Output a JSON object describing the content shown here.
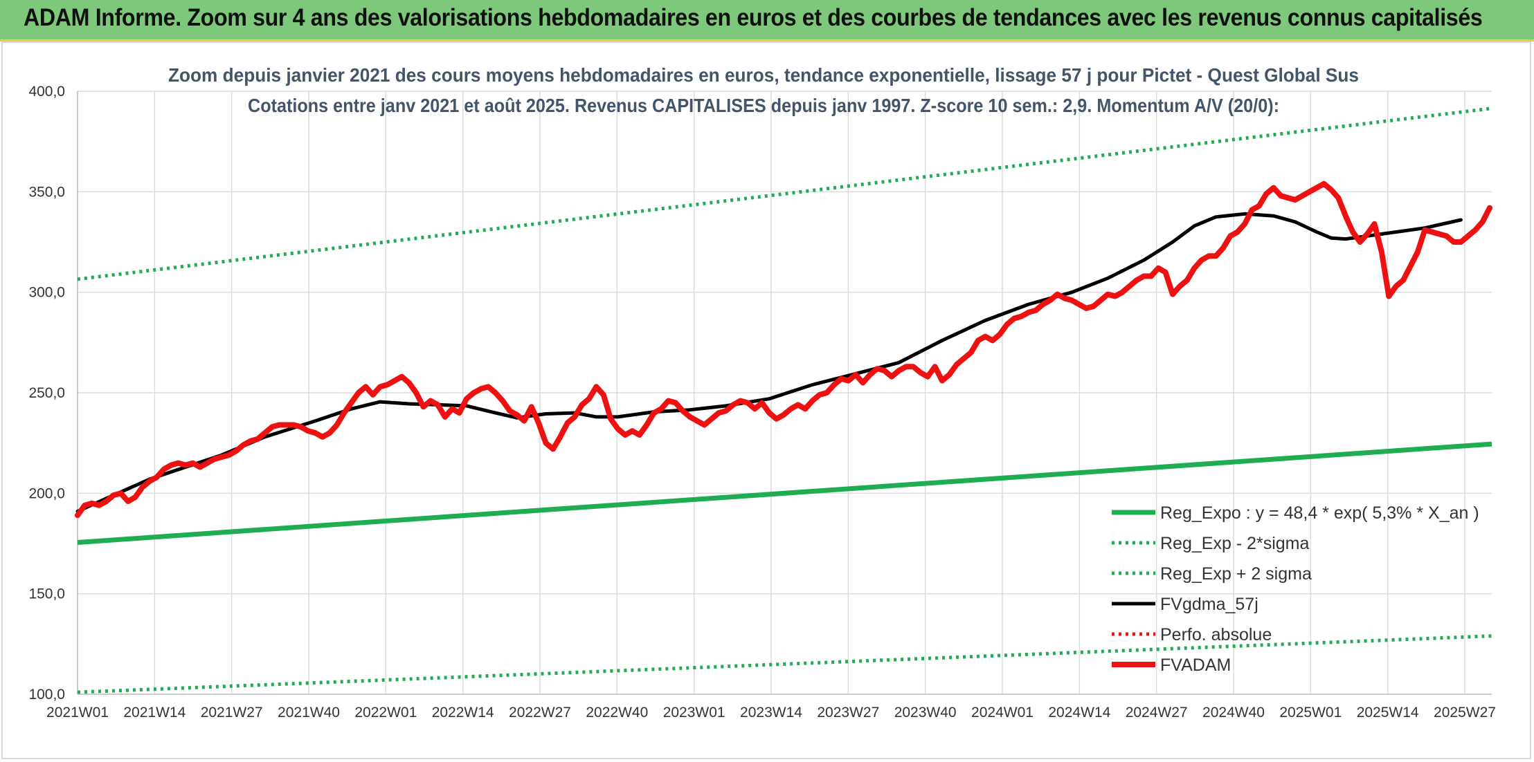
{
  "header": {
    "title": "ADAM Informe. Zoom sur 4 ans des valorisations hebdomadaires en euros et des courbes de tendances avec les revenus connus capitalisés"
  },
  "colors": {
    "header_bg": "#7dc87a",
    "header_border": "#f1d13a",
    "reg_green": "#1fad52",
    "fv_red": "#ee1111",
    "gdma_black": "#000000",
    "title_slate": "#44546a"
  },
  "chart_data": {
    "type": "line",
    "title": "Zoom depuis janvier 2021 des cours moyens hebdomadaires en euros, tendance exponentielle, lissage 57 j pour Pictet - Quest Global Sus",
    "subtitle": "Cotations entre janv 2021 et août 2025. Revenus CAPITALISES depuis janv 1997. Z-score 10 sem.: 2,9. Momentum A/V (20/0):",
    "xlabel": "",
    "ylabel": "",
    "ylim": [
      100,
      400
    ],
    "yticks": [
      "100,0",
      "150,0",
      "200,0",
      "250,0",
      "300,0",
      "350,0",
      "400,0"
    ],
    "x_ticks": [
      "2021W01",
      "2021W14",
      "2021W27",
      "2021W40",
      "2022W01",
      "2022W14",
      "2022W27",
      "2022W40",
      "2023W01",
      "2023W14",
      "2023W27",
      "2023W40",
      "2024W01",
      "2024W14",
      "2024W27",
      "2024W40",
      "2025W01",
      "2025W14",
      "2025W27"
    ],
    "grid": true,
    "legend_position": "bottom-right",
    "series": [
      {
        "name": "Reg_Expo : y = 48,4 * exp( 5,3% *  X_an )",
        "style": "solid-thick",
        "color": "#1fad52",
        "points": [
          [
            0,
            175.5
          ],
          [
            238,
            224.5
          ]
        ]
      },
      {
        "name": "Reg_Exp - 2*sigma",
        "style": "dotted",
        "color": "#1fad52",
        "points": [
          [
            0,
            101
          ],
          [
            238,
            129
          ]
        ]
      },
      {
        "name": "Reg_Exp + 2 sigma",
        "style": "dotted",
        "color": "#1fad52",
        "points": [
          [
            0,
            306.5
          ],
          [
            238,
            391.5
          ]
        ]
      },
      {
        "name": "FVgdma_57j",
        "style": "solid",
        "color": "#000000",
        "points": [
          [
            0,
            191
          ],
          [
            10,
            199
          ],
          [
            20,
            207
          ],
          [
            30,
            213
          ],
          [
            40,
            219
          ],
          [
            52,
            228
          ],
          [
            66,
            236
          ],
          [
            76,
            242
          ],
          [
            84,
            245.5
          ],
          [
            92,
            244.5
          ],
          [
            100,
            244
          ],
          [
            108,
            243.5
          ],
          [
            116,
            240
          ],
          [
            122,
            237.5
          ],
          [
            130,
            239.5
          ],
          [
            138,
            240
          ],
          [
            144,
            238
          ],
          [
            150,
            238
          ],
          [
            160,
            240.5
          ],
          [
            170,
            241.5
          ],
          [
            180,
            243.5
          ],
          [
            192,
            247
          ],
          [
            204,
            254
          ],
          [
            215,
            259
          ],
          [
            228,
            265
          ],
          [
            240,
            276
          ],
          [
            252,
            286
          ],
          [
            264,
            294
          ],
          [
            276,
            300
          ],
          [
            286,
            307
          ],
          [
            296,
            316
          ],
          [
            304,
            325
          ],
          [
            310,
            333
          ],
          [
            316,
            337.5
          ],
          [
            324,
            339
          ],
          [
            332,
            338
          ],
          [
            338,
            335
          ],
          [
            344,
            330
          ],
          [
            348,
            327
          ],
          [
            352,
            326.5
          ],
          [
            358,
            328
          ],
          [
            366,
            330
          ],
          [
            374,
            332
          ],
          [
            384,
            336
          ]
        ]
      },
      {
        "name": "Perfo. absolue",
        "style": "dotted",
        "color": "#ee1111",
        "points": []
      },
      {
        "name": "FVADAM",
        "style": "solid-thick",
        "color": "#ee1111",
        "points": [
          [
            0,
            189
          ],
          [
            2,
            194
          ],
          [
            4,
            195
          ],
          [
            6,
            194
          ],
          [
            8,
            196
          ],
          [
            10,
            199
          ],
          [
            12,
            200
          ],
          [
            14,
            196
          ],
          [
            16,
            198
          ],
          [
            18,
            203
          ],
          [
            20,
            206
          ],
          [
            22,
            208
          ],
          [
            24,
            212
          ],
          [
            26,
            214
          ],
          [
            28,
            215
          ],
          [
            30,
            214
          ],
          [
            32,
            215
          ],
          [
            34,
            213
          ],
          [
            36,
            215
          ],
          [
            38,
            217
          ],
          [
            40,
            218
          ],
          [
            42,
            219
          ],
          [
            44,
            221
          ],
          [
            46,
            224
          ],
          [
            48,
            226
          ],
          [
            50,
            227
          ],
          [
            52,
            230
          ],
          [
            54,
            233
          ],
          [
            56,
            234
          ],
          [
            58,
            234
          ],
          [
            60,
            234
          ],
          [
            62,
            233
          ],
          [
            64,
            231
          ],
          [
            66,
            230
          ],
          [
            68,
            228
          ],
          [
            70,
            230
          ],
          [
            72,
            234
          ],
          [
            74,
            240
          ],
          [
            76,
            245
          ],
          [
            78,
            250
          ],
          [
            80,
            253
          ],
          [
            82,
            249
          ],
          [
            84,
            253
          ],
          [
            86,
            254
          ],
          [
            88,
            256
          ],
          [
            90,
            258
          ],
          [
            92,
            255
          ],
          [
            94,
            250
          ],
          [
            96,
            243
          ],
          [
            98,
            246
          ],
          [
            100,
            244
          ],
          [
            102,
            238
          ],
          [
            104,
            242
          ],
          [
            106,
            240
          ],
          [
            108,
            247
          ],
          [
            110,
            250
          ],
          [
            112,
            252
          ],
          [
            114,
            253
          ],
          [
            116,
            250
          ],
          [
            118,
            246
          ],
          [
            120,
            241
          ],
          [
            122,
            239
          ],
          [
            124,
            236
          ],
          [
            126,
            243
          ],
          [
            128,
            235
          ],
          [
            130,
            225
          ],
          [
            132,
            222
          ],
          [
            134,
            228
          ],
          [
            136,
            235
          ],
          [
            138,
            238
          ],
          [
            140,
            244
          ],
          [
            142,
            247
          ],
          [
            144,
            253
          ],
          [
            146,
            249
          ],
          [
            148,
            237
          ],
          [
            150,
            232
          ],
          [
            152,
            229
          ],
          [
            154,
            231
          ],
          [
            156,
            229
          ],
          [
            158,
            234
          ],
          [
            160,
            240
          ],
          [
            162,
            242
          ],
          [
            164,
            246
          ],
          [
            166,
            245
          ],
          [
            168,
            241
          ],
          [
            170,
            238
          ],
          [
            172,
            236
          ],
          [
            174,
            234
          ],
          [
            176,
            237
          ],
          [
            178,
            240
          ],
          [
            180,
            241
          ],
          [
            182,
            244
          ],
          [
            184,
            246
          ],
          [
            186,
            245
          ],
          [
            188,
            242
          ],
          [
            190,
            245
          ],
          [
            192,
            240
          ],
          [
            194,
            237
          ],
          [
            196,
            239
          ],
          [
            198,
            242
          ],
          [
            200,
            244
          ],
          [
            202,
            242
          ],
          [
            204,
            246
          ],
          [
            206,
            249
          ],
          [
            208,
            250
          ],
          [
            210,
            254
          ],
          [
            212,
            257
          ],
          [
            214,
            256
          ],
          [
            216,
            259
          ],
          [
            218,
            255
          ],
          [
            220,
            259
          ],
          [
            222,
            262
          ],
          [
            224,
            261
          ],
          [
            226,
            258
          ],
          [
            228,
            261
          ],
          [
            230,
            263
          ],
          [
            232,
            263
          ],
          [
            234,
            260
          ],
          [
            236,
            258
          ],
          [
            238,
            263
          ],
          [
            240,
            256
          ],
          [
            242,
            259
          ],
          [
            244,
            264
          ],
          [
            246,
            267
          ],
          [
            248,
            270
          ],
          [
            250,
            276
          ],
          [
            252,
            278
          ],
          [
            254,
            276
          ],
          [
            256,
            279
          ],
          [
            258,
            284
          ],
          [
            260,
            287
          ],
          [
            262,
            288
          ],
          [
            264,
            290
          ],
          [
            266,
            291
          ],
          [
            268,
            294
          ],
          [
            270,
            296
          ],
          [
            272,
            299
          ],
          [
            274,
            297
          ],
          [
            276,
            296
          ],
          [
            278,
            294
          ],
          [
            280,
            292
          ],
          [
            282,
            293
          ],
          [
            284,
            296
          ],
          [
            286,
            299
          ],
          [
            288,
            298
          ],
          [
            290,
            300
          ],
          [
            292,
            303
          ],
          [
            294,
            306
          ],
          [
            296,
            308
          ],
          [
            298,
            308
          ],
          [
            300,
            312
          ],
          [
            302,
            310
          ],
          [
            304,
            299
          ],
          [
            306,
            303
          ],
          [
            308,
            306
          ],
          [
            310,
            312
          ],
          [
            312,
            316
          ],
          [
            314,
            318
          ],
          [
            316,
            318
          ],
          [
            318,
            322
          ],
          [
            320,
            328
          ],
          [
            322,
            330
          ],
          [
            324,
            334
          ],
          [
            326,
            341
          ],
          [
            328,
            343
          ],
          [
            330,
            349
          ],
          [
            332,
            352
          ],
          [
            334,
            348
          ],
          [
            336,
            347
          ],
          [
            338,
            346
          ],
          [
            340,
            348
          ],
          [
            342,
            350
          ],
          [
            344,
            352
          ],
          [
            346,
            354
          ],
          [
            348,
            351
          ],
          [
            350,
            347
          ],
          [
            352,
            338
          ],
          [
            354,
            330
          ],
          [
            356,
            325
          ],
          [
            358,
            329
          ],
          [
            360,
            334
          ],
          [
            362,
            320
          ],
          [
            364,
            298
          ],
          [
            366,
            303
          ],
          [
            368,
            306
          ],
          [
            370,
            313
          ],
          [
            372,
            320
          ],
          [
            374,
            331
          ],
          [
            376,
            330
          ],
          [
            378,
            329
          ],
          [
            380,
            328
          ],
          [
            382,
            325
          ],
          [
            384,
            325
          ],
          [
            386,
            328
          ],
          [
            388,
            331
          ],
          [
            390,
            335
          ],
          [
            392,
            342
          ]
        ]
      }
    ]
  }
}
